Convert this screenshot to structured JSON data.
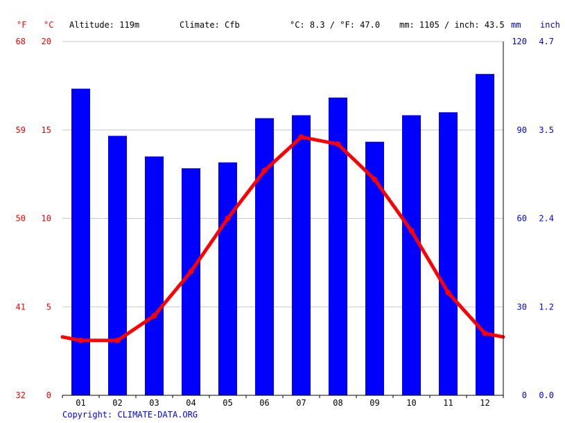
{
  "header": {
    "unit_f": "°F",
    "unit_c": "°C",
    "altitude": "Altitude: 119m",
    "climate": "Climate: Cfb",
    "temp_summary": "°C: 8.3 / °F: 47.0",
    "precip_summary": "mm: 1105 / inch: 43.5",
    "unit_mm": "mm",
    "unit_inch": "inch"
  },
  "copyright": "Copyright: CLIMATE-DATA.ORG",
  "colors": {
    "temperature": "#ff0000",
    "precipitation": "#0000ff",
    "grid": "#c8c8c8"
  },
  "chart_data": {
    "type": "bar",
    "categories": [
      "01",
      "02",
      "03",
      "04",
      "05",
      "06",
      "07",
      "08",
      "09",
      "10",
      "11",
      "12"
    ],
    "series": [
      {
        "kind": "bar",
        "axis": "mm",
        "values": [
          104,
          88,
          81,
          77,
          79,
          94,
          95,
          101,
          86,
          95,
          96,
          109
        ]
      },
      {
        "kind": "line",
        "axis": "celsius",
        "values": [
          3.1,
          3.1,
          4.5,
          7.0,
          10.0,
          12.7,
          14.6,
          14.2,
          12.2,
          9.3,
          5.8,
          3.5
        ]
      }
    ],
    "axes": {
      "left_f": {
        "ticks": [
          "68",
          "59",
          "50",
          "41",
          "32"
        ]
      },
      "left_c": {
        "ticks": [
          "20",
          "15",
          "10",
          "5",
          "0"
        ],
        "range": [
          0,
          20
        ]
      },
      "right_mm": {
        "ticks": [
          "120",
          "90",
          "60",
          "30",
          "0"
        ],
        "range": [
          0,
          120
        ]
      },
      "right_inch": {
        "ticks": [
          "4.7",
          "3.5",
          "2.4",
          "1.2",
          "0.0"
        ]
      }
    },
    "grid": true
  }
}
